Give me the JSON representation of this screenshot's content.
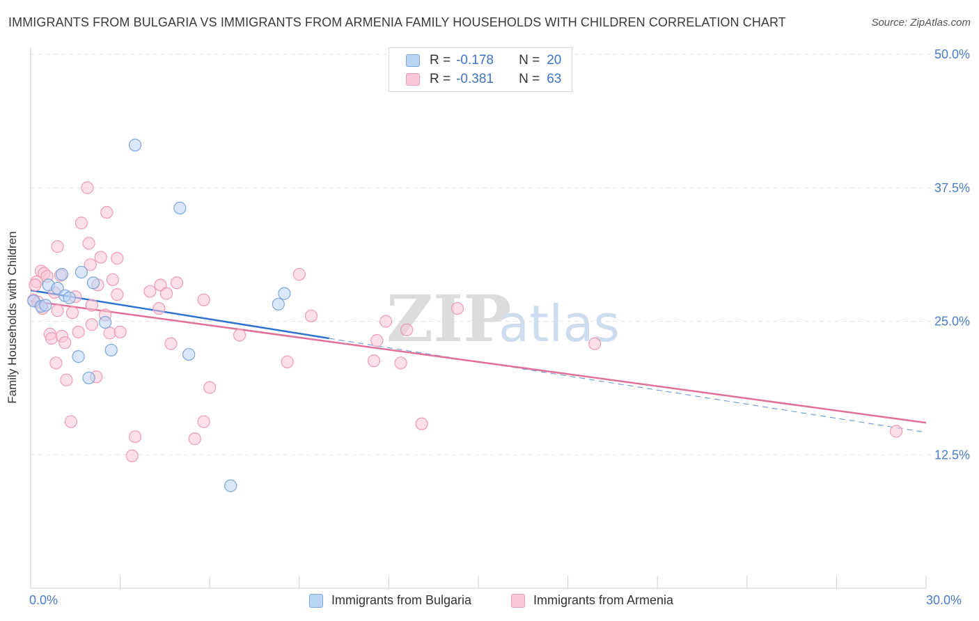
{
  "header": {
    "title": "IMMIGRANTS FROM BULGARIA VS IMMIGRANTS FROM ARMENIA FAMILY HOUSEHOLDS WITH CHILDREN CORRELATION CHART",
    "source": "Source: ZipAtlas.com"
  },
  "legend": {
    "bulgaria": {
      "r_label": "R =",
      "r_value": "-0.178",
      "n_label": "N =",
      "n_value": "20"
    },
    "armenia": {
      "r_label": "R =",
      "r_value": "-0.381",
      "n_label": "N =",
      "n_value": "63"
    }
  },
  "colors": {
    "bulgaria_fill": "#b9d3f2",
    "bulgaria_stroke": "#7aa6de",
    "bulgaria_line": "#2f73d0",
    "armenia_fill": "#f9c7d6",
    "armenia_stroke": "#ee9ab4",
    "armenia_line": "#e0709a",
    "axis_text": "#4a7cc8",
    "grid": "#e3e3e3"
  },
  "watermark": {
    "zip": "ZIP",
    "atlas": "atlas"
  },
  "chart_data": {
    "type": "scatter",
    "title": "IMMIGRANTS FROM BULGARIA VS IMMIGRANTS FROM ARMENIA FAMILY HOUSEHOLDS WITH CHILDREN CORRELATION CHART",
    "xlabel": "",
    "ylabel": "Family Households with Children",
    "xlim": [
      0,
      30
    ],
    "ylim": [
      0,
      50
    ],
    "x_tick_labels": [
      "0.0%",
      "30.0%"
    ],
    "y_ticks": [
      12.5,
      25.0,
      37.5,
      50.0
    ],
    "y_tick_labels": [
      "12.5%",
      "25.0%",
      "37.5%",
      "50.0%"
    ],
    "series": [
      {
        "name": "Immigrants from Bulgaria",
        "points": [
          [
            0.1,
            26.9
          ],
          [
            0.35,
            26.4
          ],
          [
            0.6,
            28.4
          ],
          [
            1.05,
            29.4
          ],
          [
            0.9,
            28.1
          ],
          [
            1.15,
            27.4
          ],
          [
            1.7,
            29.6
          ],
          [
            2.1,
            28.6
          ],
          [
            3.5,
            41.5
          ],
          [
            5.0,
            35.6
          ],
          [
            2.5,
            24.9
          ],
          [
            1.6,
            21.7
          ],
          [
            2.7,
            22.3
          ],
          [
            1.95,
            19.7
          ],
          [
            5.3,
            21.9
          ],
          [
            6.7,
            9.6
          ],
          [
            8.3,
            26.6
          ],
          [
            8.5,
            27.6
          ],
          [
            0.5,
            26.5
          ],
          [
            1.3,
            27.2
          ]
        ],
        "trend": {
          "x": [
            0,
            10
          ],
          "y": [
            27.9,
            23.4
          ]
        },
        "trend_dashed": {
          "x": [
            10,
            30
          ],
          "y": [
            23.4,
            14.6
          ]
        }
      },
      {
        "name": "Immigrants from Armenia",
        "points": [
          [
            0.1,
            27.0
          ],
          [
            0.2,
            28.7
          ],
          [
            0.25,
            26.8
          ],
          [
            0.35,
            29.7
          ],
          [
            0.45,
            29.5
          ],
          [
            0.55,
            29.2
          ],
          [
            0.65,
            23.8
          ],
          [
            0.7,
            23.4
          ],
          [
            0.8,
            27.7
          ],
          [
            0.85,
            21.1
          ],
          [
            0.9,
            32.0
          ],
          [
            0.9,
            26.0
          ],
          [
            1.05,
            23.6
          ],
          [
            1.15,
            23.0
          ],
          [
            1.2,
            19.5
          ],
          [
            1.35,
            15.6
          ],
          [
            1.5,
            27.3
          ],
          [
            1.6,
            24.0
          ],
          [
            1.7,
            34.2
          ],
          [
            1.9,
            37.5
          ],
          [
            1.95,
            32.3
          ],
          [
            2.0,
            30.3
          ],
          [
            2.05,
            26.5
          ],
          [
            2.05,
            24.7
          ],
          [
            2.2,
            19.8
          ],
          [
            2.25,
            28.4
          ],
          [
            2.35,
            31.0
          ],
          [
            2.55,
            35.2
          ],
          [
            2.5,
            25.6
          ],
          [
            2.65,
            23.9
          ],
          [
            2.9,
            30.9
          ],
          [
            2.9,
            27.5
          ],
          [
            3.5,
            14.2
          ],
          [
            3.4,
            12.4
          ],
          [
            4.0,
            27.8
          ],
          [
            4.3,
            26.2
          ],
          [
            4.35,
            28.4
          ],
          [
            4.55,
            27.6
          ],
          [
            4.7,
            22.9
          ],
          [
            4.9,
            28.6
          ],
          [
            5.5,
            14.0
          ],
          [
            5.8,
            15.6
          ],
          [
            5.8,
            27.0
          ],
          [
            6.0,
            18.8
          ],
          [
            7.0,
            23.7
          ],
          [
            8.6,
            21.2
          ],
          [
            9.0,
            29.4
          ],
          [
            9.4,
            25.5
          ],
          [
            11.5,
            21.3
          ],
          [
            11.6,
            23.2
          ],
          [
            11.9,
            25.0
          ],
          [
            12.4,
            21.1
          ],
          [
            12.6,
            24.2
          ],
          [
            13.1,
            15.4
          ],
          [
            14.3,
            26.2
          ],
          [
            18.9,
            22.9
          ],
          [
            29.0,
            14.7
          ],
          [
            0.15,
            28.4
          ],
          [
            0.4,
            26.2
          ],
          [
            1.0,
            29.3
          ],
          [
            3.0,
            24.0
          ],
          [
            2.75,
            28.9
          ],
          [
            1.4,
            25.8
          ]
        ],
        "trend": {
          "x": [
            0,
            30
          ],
          "y": [
            26.9,
            15.5
          ]
        }
      }
    ]
  }
}
